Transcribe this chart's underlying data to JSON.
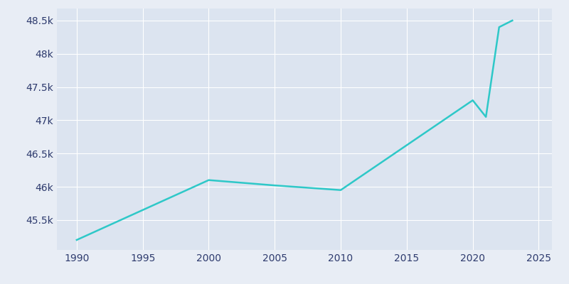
{
  "years": [
    1990,
    2000,
    2005,
    2010,
    2020,
    2021,
    2022,
    2023
  ],
  "population": [
    45200,
    46100,
    46020,
    45950,
    47300,
    47050,
    48400,
    48500
  ],
  "line_color": "#2EC8C8",
  "background_color": "#E8EDF5",
  "plot_background": "#DCE4F0",
  "text_color": "#2E3B6E",
  "grid_color": "#ffffff",
  "xlim": [
    1988.5,
    2026
  ],
  "ylim": [
    45050,
    48680
  ],
  "xticks": [
    1990,
    1995,
    2000,
    2005,
    2010,
    2015,
    2020,
    2025
  ],
  "yticks": [
    45500,
    46000,
    46500,
    47000,
    47500,
    48000,
    48500
  ],
  "linewidth": 1.8,
  "figsize": [
    8.0,
    4.0
  ],
  "dpi": 100
}
